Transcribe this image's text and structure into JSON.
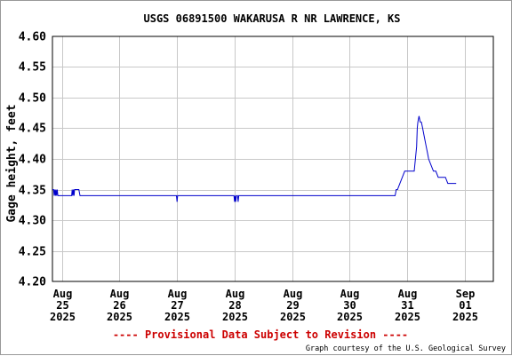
{
  "chart_data": {
    "type": "line",
    "title": "USGS 06891500 WAKARUSA R NR LAWRENCE, KS",
    "ylabel": "Gage height, feet",
    "xlabel": "",
    "ylim": [
      4.2,
      4.6
    ],
    "yticks": [
      "4.60",
      "4.55",
      "4.50",
      "4.45",
      "4.40",
      "4.35",
      "4.30",
      "4.25",
      "4.20"
    ],
    "xlim": [
      "2025-08-24T20:00",
      "2025-09-01T12:00"
    ],
    "xticks": [
      {
        "x": "2025-08-25T00:00",
        "lines": [
          "Aug",
          "25",
          "2025"
        ]
      },
      {
        "x": "2025-08-26T00:00",
        "lines": [
          "Aug",
          "26",
          "2025"
        ]
      },
      {
        "x": "2025-08-27T00:00",
        "lines": [
          "Aug",
          "27",
          "2025"
        ]
      },
      {
        "x": "2025-08-28T00:00",
        "lines": [
          "Aug",
          "28",
          "2025"
        ]
      },
      {
        "x": "2025-08-29T00:00",
        "lines": [
          "Aug",
          "29",
          "2025"
        ]
      },
      {
        "x": "2025-08-30T00:00",
        "lines": [
          "Aug",
          "30",
          "2025"
        ]
      },
      {
        "x": "2025-08-31T00:00",
        "lines": [
          "Aug",
          "31",
          "2025"
        ]
      },
      {
        "x": "2025-09-01T00:00",
        "lines": [
          "Sep",
          "01",
          "2025"
        ]
      }
    ],
    "grid": true,
    "colors": {
      "line": "#0000cc",
      "grid": "#c8c8c8",
      "axis": "#000000",
      "notice": "#cc0000"
    },
    "series": [
      {
        "x": [
          "2025-08-24T20:00",
          "2025-08-24T20:30",
          "2025-08-24T20:45",
          "2025-08-24T21:00",
          "2025-08-24T21:15",
          "2025-08-24T21:30",
          "2025-08-24T21:45",
          "2025-08-24T22:00",
          "2025-08-24T22:15",
          "2025-08-24T22:30",
          "2025-08-24T23:00",
          "2025-08-25T04:00",
          "2025-08-25T04:15",
          "2025-08-25T04:30",
          "2025-08-25T04:45",
          "2025-08-25T05:00",
          "2025-08-25T05:15",
          "2025-08-25T05:30",
          "2025-08-25T05:45",
          "2025-08-25T07:00",
          "2025-08-25T07:30",
          "2025-08-26T23:45",
          "2025-08-27T00:00",
          "2025-08-27T00:15",
          "2025-08-27T23:45",
          "2025-08-28T00:00",
          "2025-08-28T00:15",
          "2025-08-28T00:30",
          "2025-08-28T00:45",
          "2025-08-28T01:15",
          "2025-08-28T01:30",
          "2025-08-28T01:45",
          "2025-08-30T19:00",
          "2025-08-30T19:30",
          "2025-08-30T20:00",
          "2025-08-30T21:00",
          "2025-08-30T22:00",
          "2025-08-30T23:00",
          "2025-08-31T00:00",
          "2025-08-31T01:00",
          "2025-08-31T03:00",
          "2025-08-31T04:00",
          "2025-08-31T04:15",
          "2025-08-31T04:30",
          "2025-08-31T05:00",
          "2025-08-31T05:30",
          "2025-08-31T06:00",
          "2025-08-31T06:30",
          "2025-08-31T07:00",
          "2025-08-31T08:00",
          "2025-08-31T08:30",
          "2025-08-31T09:00",
          "2025-08-31T10:00",
          "2025-08-31T11:00",
          "2025-08-31T12:00",
          "2025-08-31T13:00",
          "2025-08-31T14:00",
          "2025-08-31T16:00",
          "2025-08-31T17:00",
          "2025-08-31T19:00",
          "2025-08-31T20:00",
          "2025-08-31T20:30"
        ],
        "y": [
          4.35,
          4.35,
          4.34,
          4.35,
          4.34,
          4.35,
          4.34,
          4.35,
          4.34,
          4.34,
          4.34,
          4.34,
          4.35,
          4.34,
          4.35,
          4.34,
          4.35,
          4.35,
          4.35,
          4.35,
          4.34,
          4.34,
          4.33,
          4.34,
          4.34,
          4.33,
          4.34,
          4.33,
          4.34,
          4.34,
          4.33,
          4.34,
          4.34,
          4.35,
          4.35,
          4.36,
          4.37,
          4.38,
          4.38,
          4.38,
          4.38,
          4.42,
          4.45,
          4.46,
          4.47,
          4.46,
          4.46,
          4.45,
          4.44,
          4.42,
          4.41,
          4.4,
          4.39,
          4.38,
          4.38,
          4.37,
          4.37,
          4.37,
          4.36,
          4.36,
          4.36,
          4.36
        ]
      }
    ]
  },
  "footer": {
    "notice": "---- Provisional Data Subject to Revision ----",
    "credit": "Graph courtesy of the U.S. Geological Survey"
  }
}
